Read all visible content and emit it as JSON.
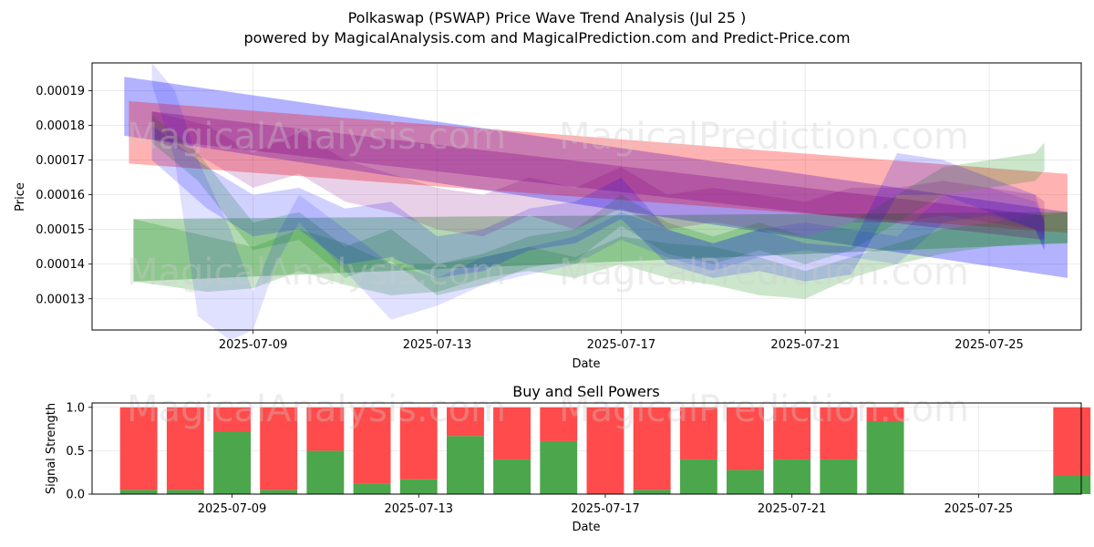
{
  "title": "Polkaswap (PSWAP) Price Wave Trend Analysis (Jul 25 )",
  "subtitle": "powered by MagicalAnalysis.com and MagicalPrediction.com and Predict-Price.com",
  "watermarks": [
    "MagicalAnalysis.com",
    "MagicalPrediction.com"
  ],
  "chart_data": [
    {
      "type": "area",
      "title": "",
      "xlabel": "Date",
      "ylabel": "Price",
      "x_range": [
        -3.5,
        18.0
      ],
      "ylim": [
        0.000121,
        0.000198
      ],
      "x_ticks": [
        {
          "x": 0,
          "label": "2025-07-09"
        },
        {
          "x": 4,
          "label": "2025-07-13"
        },
        {
          "x": 8,
          "label": "2025-07-17"
        },
        {
          "x": 12,
          "label": "2025-07-21"
        },
        {
          "x": 16,
          "label": "2025-07-25"
        }
      ],
      "y_ticks": [
        {
          "v": 0.00013,
          "label": "0.00013"
        },
        {
          "v": 0.00014,
          "label": "0.00014"
        },
        {
          "v": 0.00015,
          "label": "0.00015"
        },
        {
          "v": 0.00016,
          "label": "0.00016"
        },
        {
          "v": 0.00017,
          "label": "0.00017"
        },
        {
          "v": 0.00018,
          "label": "0.00018"
        },
        {
          "v": 0.00019,
          "label": "0.00019"
        }
      ],
      "grid": true,
      "bands": [
        {
          "name": "blue-trend-band",
          "color": "#0000ff",
          "opacity": 0.3,
          "x": [
            -2.8,
            17.7
          ],
          "upper": [
            0.000194,
            0.000155
          ],
          "lower": [
            0.000177,
            0.000136
          ]
        },
        {
          "name": "red-trend-band",
          "color": "#ff0000",
          "opacity": 0.3,
          "x": [
            -2.7,
            17.7
          ],
          "upper": [
            0.000187,
            0.000166
          ],
          "lower": [
            0.000169,
            0.000149
          ]
        },
        {
          "name": "green-trend-band",
          "color": "#008000",
          "opacity": 0.3,
          "x": [
            -2.6,
            17.7
          ],
          "upper": [
            0.000153,
            0.000155
          ],
          "lower": [
            0.000135,
            0.000146
          ]
        },
        {
          "name": "purple-trend-band",
          "color": "#800080",
          "opacity": 0.3,
          "x": [
            -2.2,
            17.2
          ],
          "upper": [
            0.000184,
            0.000154
          ],
          "lower": [
            0.000176,
            0.000147
          ]
        },
        {
          "name": "green-wave-band-1",
          "color": "#008000",
          "opacity": 0.2,
          "x": [
            -2.2,
            -1.2,
            0,
            1,
            2,
            3,
            4,
            5,
            6,
            7,
            8,
            9,
            10,
            11,
            12,
            13,
            14,
            15,
            16,
            17,
            17.2
          ],
          "upper": [
            0.000183,
            0.000172,
            0.000152,
            0.000155,
            0.000145,
            0.00015,
            0.00014,
            0.000143,
            0.000148,
            0.00015,
            0.00016,
            0.000152,
            0.000148,
            0.000152,
            0.000148,
            0.000152,
            0.00016,
            0.000168,
            0.00017,
            0.000172,
            0.000175
          ],
          "lower": [
            0.000175,
            0.000164,
            0.000144,
            0.000147,
            0.000136,
            0.000141,
            0.000131,
            0.000134,
            0.000139,
            0.000141,
            0.000151,
            0.000143,
            0.00014,
            0.000144,
            0.00014,
            0.000144,
            0.000152,
            0.00016,
            0.000162,
            0.000164,
            0.000167
          ]
        },
        {
          "name": "green-wave-band-2",
          "color": "#008000",
          "opacity": 0.2,
          "x": [
            -2.6,
            -1,
            0,
            1,
            2,
            3,
            4,
            5,
            6,
            7,
            8,
            9,
            10,
            11,
            12,
            13,
            14,
            15,
            16,
            17,
            17.7
          ],
          "upper": [
            0.000153,
            0.000148,
            0.000145,
            0.00015,
            0.000146,
            0.00014,
            0.00014,
            0.000142,
            0.000145,
            0.000142,
            0.000148,
            0.000146,
            0.000145,
            0.000142,
            0.000138,
            0.000142,
            0.000146,
            0.00015,
            0.000152,
            0.000154,
            0.000155
          ],
          "lower": [
            0.000135,
            0.000132,
            0.000133,
            0.000138,
            0.000134,
            0.000131,
            0.000132,
            0.000136,
            0.000138,
            0.000136,
            0.00014,
            0.000136,
            0.000134,
            0.000131,
            0.00013,
            0.000136,
            0.00014,
            0.000143,
            0.000145,
            0.000146,
            0.000146
          ]
        },
        {
          "name": "blue-wave-band-1",
          "color": "#0000ff",
          "opacity": 0.12,
          "x": [
            -2.2,
            -1.7,
            -1.2,
            -0.5,
            0,
            0.5,
            1,
            2,
            3,
            4,
            5,
            6,
            7,
            8,
            9,
            10,
            11,
            12,
            13,
            14,
            15,
            16,
            17,
            17.2
          ],
          "upper": [
            0.000198,
            0.00019,
            0.00017,
            0.00015,
            0.000132,
            0.000148,
            0.00016,
            0.00015,
            0.00014,
            0.000136,
            0.000142,
            0.000145,
            0.000148,
            0.000155,
            0.00015,
            0.000146,
            0.00015,
            0.000152,
            0.00015,
            0.000148,
            0.00016,
            0.000162,
            0.000158,
            0.000152
          ],
          "lower": [
            0.000192,
            0.00017,
            0.000125,
            0.000118,
            0.000121,
            0.00014,
            0.000152,
            0.000138,
            0.000124,
            0.000128,
            0.000134,
            0.000137,
            0.00014,
            0.000147,
            0.000142,
            0.000138,
            0.000142,
            0.000144,
            0.000142,
            0.00014,
            0.000152,
            0.000154,
            0.00015,
            0.000144
          ]
        },
        {
          "name": "blue-wave-band-2",
          "color": "#0000ff",
          "opacity": 0.18,
          "x": [
            -2.2,
            -1,
            0,
            1,
            2,
            3,
            4,
            5,
            6,
            7,
            8,
            9,
            10,
            11,
            12,
            13,
            14,
            15,
            16,
            17,
            17.2
          ],
          "upper": [
            0.00018,
            0.000168,
            0.00016,
            0.000162,
            0.000156,
            0.000158,
            0.000148,
            0.00015,
            0.000156,
            0.000158,
            0.000165,
            0.00015,
            0.000146,
            0.00015,
            0.000146,
            0.000145,
            0.000172,
            0.00017,
            0.000165,
            0.00016,
            0.000152
          ],
          "lower": [
            0.00017,
            0.000156,
            0.000148,
            0.00015,
            0.00014,
            0.000142,
            0.000136,
            0.000138,
            0.000144,
            0.000146,
            0.000153,
            0.00014,
            0.000136,
            0.000138,
            0.000135,
            0.000137,
            0.00016,
            0.00016,
            0.000155,
            0.00015,
            0.000144
          ]
        },
        {
          "name": "purple-wave-band",
          "color": "#800080",
          "opacity": 0.18,
          "x": [
            -2.2,
            -1,
            0,
            1,
            2,
            3,
            4,
            5,
            6,
            7,
            8,
            9,
            10,
            11,
            12,
            13,
            14,
            15,
            16,
            17,
            17.2
          ],
          "upper": [
            0.000184,
            0.00018,
            0.000172,
            0.000178,
            0.00017,
            0.000166,
            0.000162,
            0.00016,
            0.000165,
            0.000162,
            0.000168,
            0.00016,
            0.000162,
            0.00016,
            0.000158,
            0.000162,
            0.000162,
            0.000164,
            0.000162,
            0.00016,
            0.000158
          ],
          "lower": [
            0.000176,
            0.00017,
            0.000162,
            0.000166,
            0.000158,
            0.000155,
            0.00015,
            0.000148,
            0.000154,
            0.00015,
            0.000156,
            0.00015,
            0.000152,
            0.00015,
            0.000148,
            0.000152,
            0.000152,
            0.000154,
            0.000152,
            0.00015,
            0.000148
          ]
        }
      ]
    },
    {
      "type": "bar",
      "title": "Buy and Sell Powers",
      "xlabel": "Date",
      "ylabel": "Signal Strength",
      "x_range": [
        -3.0,
        18.2
      ],
      "ylim": [
        0,
        1.05
      ],
      "x_ticks": [
        {
          "x": 0,
          "label": "2025-07-09"
        },
        {
          "x": 4,
          "label": "2025-07-13"
        },
        {
          "x": 8,
          "label": "2025-07-17"
        },
        {
          "x": 12,
          "label": "2025-07-21"
        },
        {
          "x": 16,
          "label": "2025-07-25"
        }
      ],
      "y_ticks": [
        {
          "v": 0.0,
          "label": "0.0"
        },
        {
          "v": 0.5,
          "label": "0.5"
        },
        {
          "v": 1.0,
          "label": "1.0"
        }
      ],
      "grid": true,
      "buy_color": "#4ca64c",
      "sell_color": "#ff4b4b",
      "series": [
        {
          "name": "Buy",
          "x": [
            -2,
            -1,
            0,
            1,
            2,
            3,
            4,
            5,
            6,
            7,
            8,
            9,
            10,
            11,
            12,
            13,
            14,
            15,
            18
          ],
          "values": [
            0.05,
            0.05,
            0.72,
            0.05,
            0.5,
            0.12,
            0.17,
            0.67,
            0.4,
            0.61,
            0.0,
            0.05,
            0.4,
            0.28,
            0.4,
            0.4,
            0.84,
            0.0,
            0.22
          ]
        },
        {
          "name": "Sell",
          "x": [
            -2,
            -1,
            0,
            1,
            2,
            3,
            4,
            5,
            6,
            7,
            8,
            9,
            10,
            11,
            12,
            13,
            14,
            15,
            18
          ],
          "values": [
            0.95,
            0.95,
            0.28,
            0.95,
            0.5,
            0.88,
            0.83,
            0.33,
            0.6,
            0.39,
            1.0,
            0.95,
            0.6,
            0.72,
            0.6,
            0.6,
            0.16,
            0.0,
            0.78
          ]
        }
      ]
    }
  ]
}
